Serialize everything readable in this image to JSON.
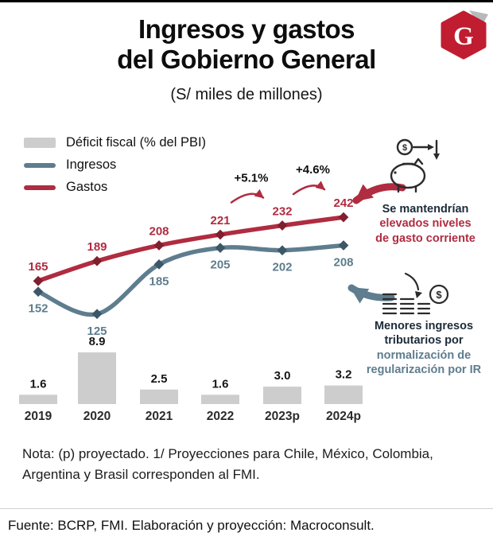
{
  "header": {
    "title_line1": "Ingresos y gastos",
    "title_line2": "del Gobierno General",
    "subtitle": "(S/ miles de millones)",
    "logo": {
      "letter": "G",
      "color": "#c01d31"
    }
  },
  "legend": {
    "items": [
      {
        "label": "Déficit fiscal (% del PBI)",
        "swatch": "gray-bar",
        "color": "#cdcdcd"
      },
      {
        "label": "Ingresos",
        "swatch": "blue-line",
        "color": "#5e7d8e"
      },
      {
        "label": "Gastos",
        "swatch": "red-line",
        "color": "#b02c40"
      }
    ]
  },
  "chart_data": {
    "type": "line+bar",
    "title": "Ingresos y gastos del Gobierno General",
    "unit": "S/ miles de millones",
    "categories": [
      "2019",
      "2020",
      "2021",
      "2022",
      "2023p",
      "2024p"
    ],
    "series": [
      {
        "name": "Gastos",
        "type": "line",
        "color": "#b02c40",
        "marker_color": "#801f2e",
        "values": [
          165,
          189,
          208,
          221,
          232,
          242
        ]
      },
      {
        "name": "Ingresos",
        "type": "line",
        "color": "#5e7d8e",
        "marker_color": "#3c5766",
        "values": [
          152,
          125,
          185,
          205,
          202,
          208
        ]
      },
      {
        "name": "Déficit fiscal (% del PBI)",
        "type": "bar",
        "color": "#cdcdcd",
        "values": [
          1.6,
          8.9,
          2.5,
          1.6,
          3.0,
          3.2
        ]
      }
    ],
    "annotations": [
      {
        "label": "+5.1%",
        "between": [
          "2022",
          "2023p"
        ]
      },
      {
        "label": "+4.6%",
        "between": [
          "2023p",
          "2024p"
        ]
      }
    ],
    "grid": false,
    "legend_position": "top-left"
  },
  "callouts": {
    "gastos": {
      "icon": "piggy-bank-money-flow-icon",
      "lines": [
        "Se mantendrían",
        "elevados niveles",
        "de gasto corriente"
      ]
    },
    "ingresos": {
      "icon": "coin-stacks-decline-icon",
      "lines": [
        "Menores ingresos",
        "tributarios por",
        "normalización de",
        "regularización por IR"
      ]
    }
  },
  "note": {
    "lines": [
      "Nota: (p) proyectado. 1/ Proyecciones para Chile, México, Colombia,",
      "Argentina y Brasil corresponden al FMI."
    ]
  },
  "footer": {
    "text": "Fuente: BCRP, FMI. Elaboración y proyección: Macroconsult."
  }
}
